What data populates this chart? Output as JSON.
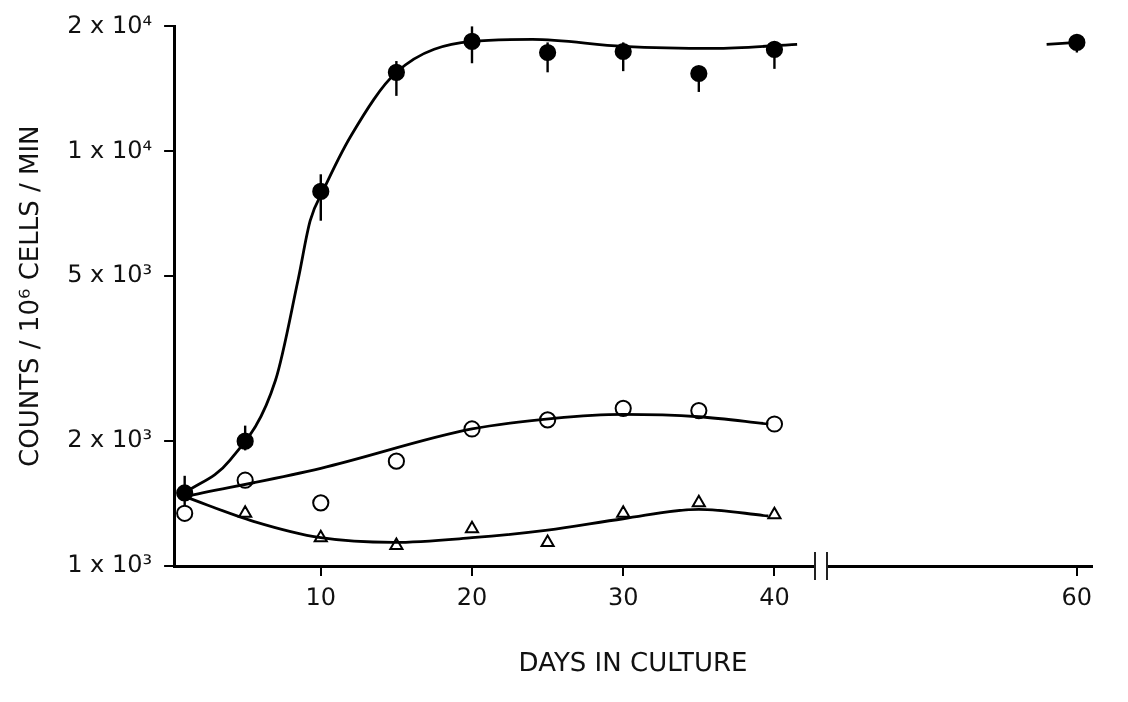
{
  "chart_data": {
    "type": "scatter",
    "xlabel": "DAYS IN CULTURE",
    "ylabel": "COUNTS / 10⁶ CELLS / MIN",
    "log": true,
    "grid": false,
    "legend": false,
    "xlim": [
      0.3,
      61
    ],
    "xticks": [
      10,
      20,
      30,
      40,
      60
    ],
    "ylim": [
      1000,
      20000
    ],
    "yticks": [
      {
        "value": 1000,
        "label": "1 x 10³"
      },
      {
        "value": 2000,
        "label": "2 x 10³"
      },
      {
        "value": 5000,
        "label": "5 x 10³"
      },
      {
        "value": 10000,
        "label": "1 x 10⁴"
      },
      {
        "value": 20000,
        "label": "2 x 10⁴"
      }
    ],
    "series": [
      {
        "type": "line",
        "color": "#000000",
        "marker": "none",
        "x": [
          1,
          4,
          7,
          8.5,
          9.3,
          10.2,
          12,
          15,
          20,
          24,
          30,
          36,
          41.5
        ],
        "values": [
          1500,
          1800,
          2800,
          4900,
          6800,
          8100,
          10900,
          15500,
          18400,
          18600,
          17900,
          17700,
          18100
        ]
      },
      {
        "type": "line",
        "color": "#000000",
        "marker": "none",
        "x": [
          58,
          60
        ],
        "values": [
          18100,
          18300
        ]
      },
      {
        "type": "line",
        "color": "#000000",
        "marker": "none",
        "x": [
          1,
          10,
          20,
          25.4,
          30,
          35,
          39.6
        ],
        "values": [
          1470,
          1720,
          2140,
          2270,
          2320,
          2290,
          2200
        ]
      },
      {
        "type": "line",
        "color": "#000000",
        "marker": "none",
        "x": [
          1,
          5.6,
          10,
          14.8,
          20,
          25,
          30,
          35,
          39.6
        ],
        "values": [
          1470,
          1280,
          1170,
          1140,
          1170,
          1220,
          1300,
          1370,
          1320
        ]
      },
      {
        "type": "scatter",
        "color": "#000000",
        "marker": "circle",
        "x": [
          1,
          5,
          10,
          15,
          20,
          25,
          30,
          35,
          40,
          60
        ],
        "values": [
          1500,
          2000,
          8000,
          15500,
          18400,
          17300,
          17400,
          15400,
          17600,
          18300
        ],
        "errors": [
          [
            1400,
            1650
          ],
          [
            1900,
            2180
          ],
          [
            6800,
            8800
          ],
          [
            13600,
            16500
          ],
          [
            16300,
            20000
          ],
          [
            15500,
            18300
          ],
          [
            15600,
            18300
          ],
          [
            13900,
            15900
          ],
          [
            15800,
            18300
          ],
          [
            17300,
            19000
          ]
        ]
      },
      {
        "type": "scatter",
        "color": "#ffffff",
        "marker": "circle",
        "x": [
          1,
          5,
          10,
          15,
          20,
          25,
          30,
          35,
          40
        ],
        "values": [
          1340,
          1610,
          1420,
          1790,
          2140,
          2250,
          2400,
          2370,
          2200
        ]
      },
      {
        "type": "scatter",
        "color": "#ffffff",
        "marker": "triangle",
        "x": [
          5,
          10,
          15,
          20,
          25,
          30,
          35,
          40
        ],
        "values": [
          1340,
          1170,
          1120,
          1230,
          1140,
          1340,
          1420,
          1330
        ]
      }
    ]
  }
}
